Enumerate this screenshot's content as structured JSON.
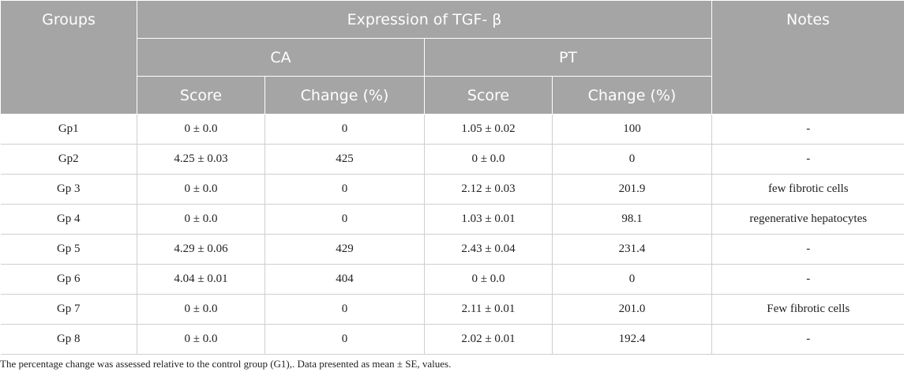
{
  "header": {
    "groups": "Groups",
    "expression": "Expression of TGF- β",
    "notes": "Notes",
    "ca": "CA",
    "pt": "PT",
    "score": "Score",
    "change": "Change (%)"
  },
  "rows": [
    {
      "group": "Gp1",
      "ca_score": "0 ± 0.0",
      "ca_change": "0",
      "pt_score": "1.05 ± 0.02",
      "pt_change": "100",
      "notes": "-"
    },
    {
      "group": "Gp2",
      "ca_score": "4.25 ± 0.03",
      "ca_change": "425",
      "pt_score": "0 ± 0.0",
      "pt_change": "0",
      "notes": "-"
    },
    {
      "group": "Gp 3",
      "ca_score": "0 ± 0.0",
      "ca_change": "0",
      "pt_score": "2.12 ± 0.03",
      "pt_change": "201.9",
      "notes": "few fibrotic cells"
    },
    {
      "group": "Gp 4",
      "ca_score": "0 ± 0.0",
      "ca_change": "0",
      "pt_score": "1.03 ± 0.01",
      "pt_change": "98.1",
      "notes": "regenerative hepatocytes"
    },
    {
      "group": "Gp 5",
      "ca_score": "4.29 ± 0.06",
      "ca_change": "429",
      "pt_score": "2.43 ± 0.04",
      "pt_change": "231.4",
      "notes": "-"
    },
    {
      "group": "Gp 6",
      "ca_score": "4.04 ± 0.01",
      "ca_change": "404",
      "pt_score": "0 ± 0.0",
      "pt_change": "0",
      "notes": "-"
    },
    {
      "group": "Gp 7",
      "ca_score": "0 ± 0.0",
      "ca_change": "0",
      "pt_score": "2.11 ± 0.01",
      "pt_change": "201.0",
      "notes": "Few fibrotic cells"
    },
    {
      "group": "Gp 8",
      "ca_score": "0 ± 0.0",
      "ca_change": "0",
      "pt_score": "2.02 ± 0.01",
      "pt_change": "192.4",
      "notes": "-"
    }
  ],
  "footnote": "The percentage change was assessed relative to the control group (G1),. Data presented as mean ± SE, values."
}
